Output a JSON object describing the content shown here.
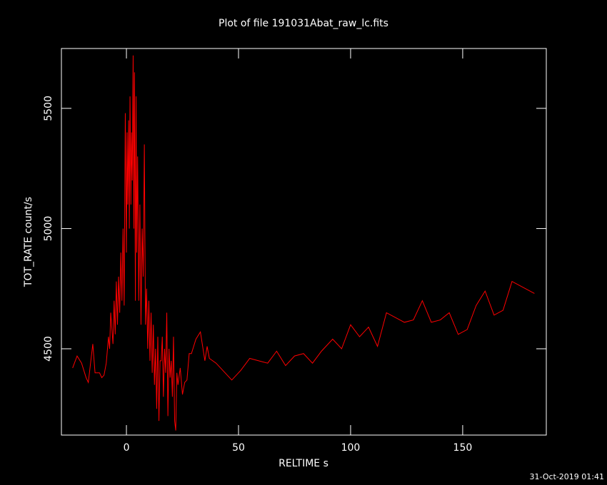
{
  "chart_data": {
    "type": "line",
    "title": "Plot of file 191031Abat_raw_lc.fits",
    "xlabel": "RELTIME  s",
    "ylabel": "TOT_RATE  count/s",
    "footer": "31-Oct-2019 01:41",
    "xlim": [
      -29,
      187.3
    ],
    "ylim": [
      4141,
      5749
    ],
    "xticks": [
      0,
      50,
      100,
      150
    ],
    "yticks": [
      4500,
      5000,
      5500
    ],
    "series": [
      {
        "color": "#ff0000",
        "x": [
          -24,
          -22,
          -20,
          -18,
          -17,
          -15,
          -14,
          -12,
          -11,
          -10,
          -9,
          -8,
          -7.5,
          -7,
          -6,
          -5.5,
          -5,
          -4.5,
          -4,
          -3.5,
          -3,
          -2.5,
          -2,
          -1.5,
          -1,
          -0.5,
          0,
          0.3,
          0.6,
          1,
          1.3,
          1.6,
          2,
          2.3,
          2.6,
          3,
          3.3,
          3.6,
          4,
          4.3,
          4.6,
          5,
          5.5,
          6,
          6.5,
          7,
          7.5,
          8,
          8.5,
          9,
          9.5,
          10,
          10.5,
          11,
          11.5,
          12,
          12.5,
          13,
          13.5,
          14,
          14.5,
          15,
          15.5,
          16,
          16.5,
          17,
          17.5,
          18,
          18.5,
          19,
          19.5,
          20,
          20.5,
          21,
          21.5,
          22,
          22.5,
          23,
          24,
          25,
          26,
          27,
          28,
          29,
          31,
          33,
          35,
          36,
          37,
          40,
          47,
          51,
          55,
          63,
          67,
          71,
          75,
          79,
          83,
          87,
          92,
          96,
          100,
          104,
          108,
          112,
          116,
          124,
          128,
          132,
          136,
          140,
          144,
          148,
          152,
          156,
          160,
          164,
          168,
          172,
          182
        ],
        "values": [
          4420,
          4470,
          4440,
          4380,
          4360,
          4520,
          4400,
          4400,
          4380,
          4390,
          4440,
          4550,
          4500,
          4650,
          4520,
          4700,
          4560,
          4780,
          4600,
          4800,
          4650,
          4900,
          4700,
          5000,
          4680,
          5480,
          4900,
          5400,
          5100,
          5450,
          5000,
          5550,
          5100,
          5400,
          5200,
          5720,
          5000,
          5650,
          4700,
          5550,
          4900,
          5300,
          4700,
          5100,
          4600,
          5000,
          4800,
          5350,
          4600,
          4750,
          4500,
          4700,
          4450,
          4650,
          4400,
          4600,
          4350,
          4500,
          4250,
          4550,
          4200,
          4450,
          4450,
          4550,
          4300,
          4500,
          4400,
          4650,
          4220,
          4500,
          4380,
          4450,
          4300,
          4550,
          4200,
          4160,
          4400,
          4350,
          4420,
          4310,
          4360,
          4370,
          4480,
          4480,
          4540,
          4570,
          4450,
          4510,
          4460,
          4440,
          4370,
          4410,
          4460,
          4440,
          4490,
          4430,
          4470,
          4480,
          4440,
          4490,
          4540,
          4500,
          4600,
          4550,
          4590,
          4510,
          4650,
          4610,
          4620,
          4700,
          4610,
          4620,
          4650,
          4560,
          4580,
          4680,
          4740,
          4640,
          4660,
          4780,
          4730
        ]
      }
    ]
  }
}
